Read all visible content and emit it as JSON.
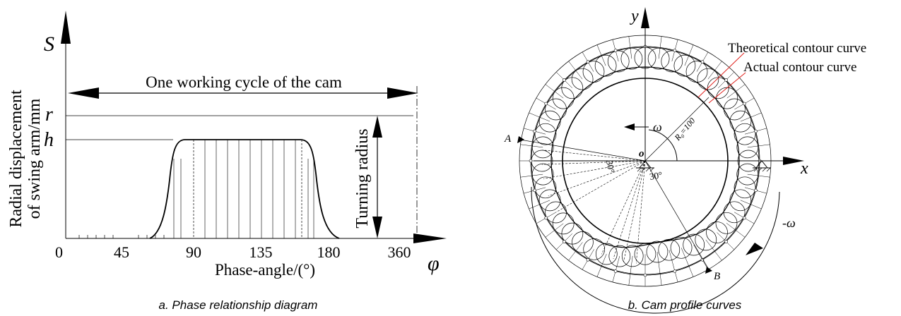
{
  "left_panel": {
    "caption": "a. Phase relationship diagram",
    "y_axis_symbol": "S",
    "y_axis_title_line1": "Radial displacement",
    "y_axis_title_line2": "of swing arm/mm",
    "x_axis_symbol": "φ",
    "x_axis_title": "Phase-angle/(°)",
    "cycle_label": "One working cycle of the cam",
    "turning_radius_label": "Turning radius",
    "r_label": "r",
    "h_label": "h",
    "x_ticks": [
      "0",
      "45",
      "90",
      "135",
      "180",
      "360"
    ]
  },
  "right_panel": {
    "caption": "b. Cam profile curves",
    "y_axis_label": "y",
    "x_axis_label": "x",
    "origin_label": "o",
    "theoretical_label": "Theoretical contour curve",
    "actual_label": "Actual contour curve",
    "omega_label": "ω",
    "neg_omega_label": "-ω",
    "radius_label": "R₀=100",
    "angle_label_a": "30°",
    "angle_label_b": "30°",
    "point_a": "A",
    "point_b": "B"
  },
  "colors": {
    "leader_line": "#e0201c",
    "stroke": "#000000"
  }
}
